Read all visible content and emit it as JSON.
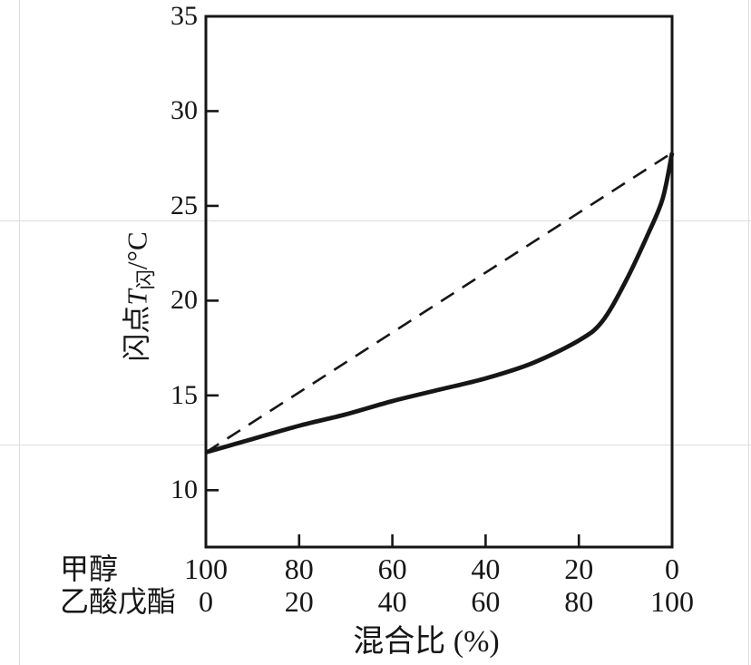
{
  "page": {
    "background": "#ffffff",
    "scan_rule_color": "#dcdcdc",
    "ink_color": "#161616"
  },
  "chart_data": {
    "type": "line",
    "title": "",
    "xlabel": "混合比 (%)",
    "ylabel": {
      "prefix": "闪点",
      "symbol": "T",
      "subscript": "闪",
      "suffix": "/°C"
    },
    "grid": false,
    "legend": "none",
    "x_axis": {
      "tick_positions": [
        0,
        20,
        40,
        60,
        80,
        100
      ],
      "rows": [
        {
          "label": "甲醇",
          "values": [
            "100",
            "80",
            "60",
            "40",
            "20",
            "0"
          ]
        },
        {
          "label": "乙酸戊酯",
          "values": [
            "0",
            "20",
            "40",
            "60",
            "80",
            "100"
          ]
        }
      ],
      "xlim": [
        0,
        100
      ]
    },
    "y_axis": {
      "tick_values": [
        35,
        30,
        25,
        20,
        15,
        10
      ],
      "tick_labels": [
        "35",
        "30",
        "25",
        "20",
        "15",
        "10"
      ],
      "ylim": [
        7,
        35
      ]
    },
    "series": [
      {
        "name": "flash-point-curve",
        "style": "solid",
        "x": [
          0,
          10,
          20,
          30,
          40,
          50,
          60,
          70,
          80,
          85,
          90,
          95,
          98,
          100
        ],
        "y": [
          12.0,
          12.7,
          13.4,
          14.0,
          14.7,
          15.3,
          15.9,
          16.7,
          17.9,
          18.9,
          21.0,
          23.6,
          25.4,
          27.8
        ]
      },
      {
        "name": "linear-reference-line",
        "style": "dashed",
        "x": [
          0,
          100
        ],
        "y": [
          12.0,
          27.8
        ]
      }
    ]
  }
}
